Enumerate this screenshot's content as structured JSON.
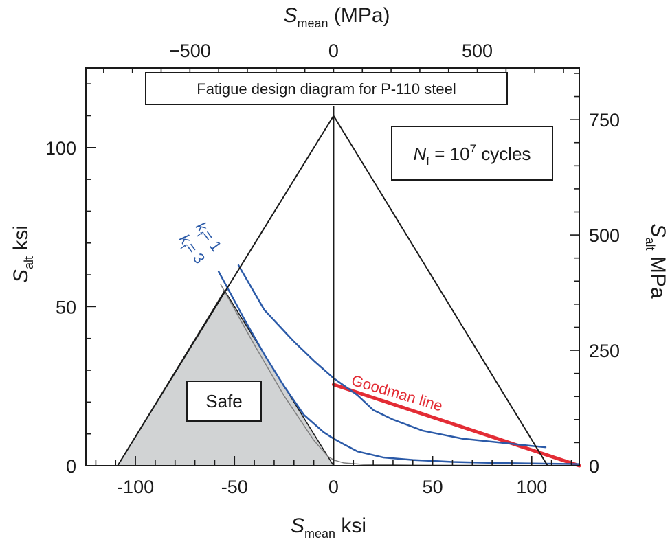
{
  "chart_data": {
    "type": "line",
    "title": "Fatigue design diagram for P-110 steel",
    "annotation": "N_f = 10^7 cycles",
    "annotation_parts": {
      "symbol": "N",
      "subscript": "f",
      "base": "= 10",
      "exponent": "7",
      "suffix": "cycles"
    },
    "safe_label": "Safe",
    "x_axis_bottom": {
      "label_main": "S",
      "label_sub": "mean",
      "label_unit": "ksi",
      "range": [
        -125,
        124
      ],
      "ticks": [
        -100,
        -50,
        0,
        50,
        100
      ],
      "minor_step": 10
    },
    "x_axis_top": {
      "label_main": "S",
      "label_sub": "mean",
      "label_unit": "(MPa)",
      "ticks": [
        -500,
        0,
        500
      ],
      "minor_step": 100
    },
    "y_axis_left": {
      "label_main": "S",
      "label_sub": "alt",
      "label_unit": "ksi",
      "range": [
        0,
        125
      ],
      "ticks": [
        0,
        50,
        100
      ],
      "minor_step": 10
    },
    "y_axis_right": {
      "label_main": "S",
      "label_sub": "alt",
      "label_unit": "MPa",
      "ticks": [
        0,
        250,
        500,
        750
      ],
      "minor_step": 50
    },
    "colors": {
      "axis": "#1a1a1a",
      "fatigue": "#2b5aa8",
      "goodman": "#e32c35",
      "safe_fill": "#d1d3d4",
      "gray": "#808080"
    },
    "series": [
      {
        "name": "Goodman line",
        "kind": "line",
        "color": "#e32c35",
        "x": [
          0,
          124
        ],
        "y": [
          25.5,
          0
        ]
      },
      {
        "name": "k_f = 1",
        "label_main": "k",
        "label_sub": "f",
        "label_value": "= 1",
        "kind": "curve",
        "color": "#2b5aa8",
        "x": [
          -48,
          -35,
          -20,
          -10,
          0,
          12,
          20,
          30,
          45,
          65,
          85,
          100,
          107
        ],
        "y": [
          63,
          49,
          39,
          33,
          27.5,
          22.2,
          17.5,
          14.5,
          11,
          8.5,
          7.2,
          6.2,
          5.8
        ]
      },
      {
        "name": "k_f = 3",
        "label_main": "k",
        "label_sub": "f",
        "label_value": "= 3",
        "kind": "curve",
        "color": "#2b5aa8",
        "x": [
          -58,
          -45,
          -35,
          -25,
          -15,
          -5,
          0,
          5,
          12,
          25,
          40,
          60,
          80,
          100,
          124
        ],
        "y": [
          61,
          46,
          35,
          25,
          16,
          10.5,
          8.5,
          6.8,
          4.5,
          2.6,
          1.8,
          1.2,
          0.9,
          0.7,
          0.5
        ]
      },
      {
        "name": "",
        "kind": "curve",
        "color": "#808080",
        "x": [
          -57,
          -40,
          -25,
          -10,
          -3,
          0,
          5,
          15,
          40,
          80,
          124
        ],
        "y": [
          57,
          38,
          22,
          8,
          3,
          1.8,
          0.9,
          0.4,
          0.2,
          0.1,
          0.05
        ]
      },
      {
        "name": "",
        "kind": "envelope",
        "color": "#1a1a1a",
        "x": [
          -109,
          0,
          108
        ],
        "y": [
          0,
          110,
          0
        ]
      }
    ],
    "safe_region": {
      "x": [
        -109,
        -55,
        0
      ],
      "y": [
        0,
        55,
        0
      ]
    },
    "grid": false,
    "legend": "none"
  }
}
